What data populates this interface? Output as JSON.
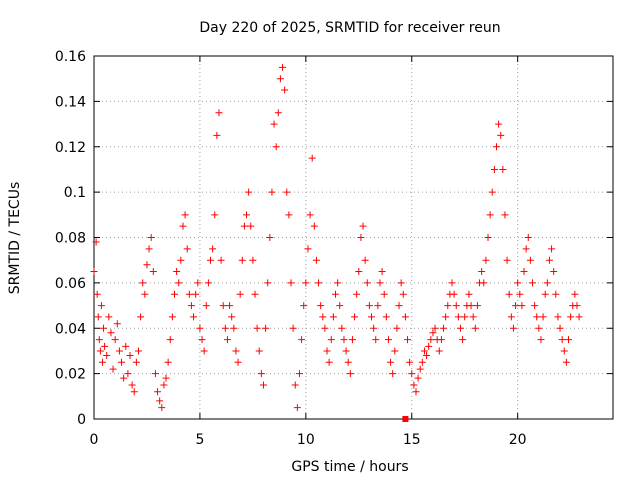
{
  "chart_data": {
    "type": "scatter",
    "title": "Day 220 of 2025, SRMTID for receiver reun",
    "xlabel": "GPS time / hours",
    "ylabel": "SRMTID / TECUs",
    "xlim": [
      0,
      24.5
    ],
    "ylim": [
      0,
      0.16
    ],
    "xticks": [
      0,
      5,
      10,
      15,
      20
    ],
    "xtick_labels": [
      "0",
      "5",
      "10",
      "15",
      "20"
    ],
    "yticks": [
      0,
      0.02,
      0.04,
      0.06,
      0.08,
      0.1,
      0.12,
      0.14,
      0.16
    ],
    "ytick_labels": [
      "0",
      "0.02",
      "0.04",
      "0.06",
      "0.08",
      "0.1",
      "0.12",
      "0.14",
      "0.16"
    ],
    "grid": true,
    "marker": "plus",
    "color": "#ff0000",
    "series": [
      {
        "name": "SRMTID",
        "points": [
          [
            0.0,
            0.065
          ],
          [
            0.1,
            0.078
          ],
          [
            0.15,
            0.055
          ],
          [
            0.2,
            0.045
          ],
          [
            0.25,
            0.035
          ],
          [
            0.3,
            0.03
          ],
          [
            0.35,
            0.05
          ],
          [
            0.4,
            0.025
          ],
          [
            0.45,
            0.04
          ],
          [
            0.5,
            0.032
          ],
          [
            0.6,
            0.028
          ],
          [
            0.7,
            0.045
          ],
          [
            0.8,
            0.038
          ],
          [
            0.9,
            0.022
          ],
          [
            1.0,
            0.035
          ],
          [
            1.1,
            0.042
          ],
          [
            1.2,
            0.03
          ],
          [
            1.3,
            0.025
          ],
          [
            1.4,
            0.018
          ],
          [
            1.5,
            0.032
          ],
          [
            1.6,
            0.02
          ],
          [
            1.7,
            0.028
          ],
          [
            1.8,
            0.015
          ],
          [
            1.9,
            0.012
          ],
          [
            2.0,
            0.025
          ],
          [
            2.1,
            0.03
          ],
          [
            2.2,
            0.045
          ],
          [
            2.3,
            0.06
          ],
          [
            2.4,
            0.055
          ],
          [
            2.5,
            0.068
          ],
          [
            2.6,
            0.075
          ],
          [
            2.7,
            0.08
          ],
          [
            2.8,
            0.065
          ],
          [
            2.9,
            0.02
          ],
          [
            3.0,
            0.012
          ],
          [
            3.1,
            0.008
          ],
          [
            3.2,
            0.005
          ],
          [
            3.3,
            0.015
          ],
          [
            3.4,
            0.018
          ],
          [
            3.5,
            0.025
          ],
          [
            3.6,
            0.035
          ],
          [
            3.7,
            0.045
          ],
          [
            3.8,
            0.055
          ],
          [
            3.9,
            0.065
          ],
          [
            4.0,
            0.06
          ],
          [
            4.1,
            0.07
          ],
          [
            4.2,
            0.085
          ],
          [
            4.3,
            0.09
          ],
          [
            4.4,
            0.075
          ],
          [
            4.5,
            0.055
          ],
          [
            4.6,
            0.05
          ],
          [
            4.7,
            0.045
          ],
          [
            4.8,
            0.055
          ],
          [
            4.9,
            0.06
          ],
          [
            5.0,
            0.04
          ],
          [
            5.1,
            0.035
          ],
          [
            5.2,
            0.03
          ],
          [
            5.3,
            0.05
          ],
          [
            5.4,
            0.06
          ],
          [
            5.5,
            0.07
          ],
          [
            5.6,
            0.075
          ],
          [
            5.7,
            0.09
          ],
          [
            5.8,
            0.125
          ],
          [
            5.9,
            0.135
          ],
          [
            6.0,
            0.07
          ],
          [
            6.1,
            0.05
          ],
          [
            6.2,
            0.04
          ],
          [
            6.3,
            0.035
          ],
          [
            6.4,
            0.05
          ],
          [
            6.5,
            0.045
          ],
          [
            6.6,
            0.04
          ],
          [
            6.7,
            0.03
          ],
          [
            6.8,
            0.025
          ],
          [
            6.9,
            0.055
          ],
          [
            7.0,
            0.07
          ],
          [
            7.1,
            0.085
          ],
          [
            7.2,
            0.09
          ],
          [
            7.3,
            0.1
          ],
          [
            7.4,
            0.085
          ],
          [
            7.5,
            0.07
          ],
          [
            7.6,
            0.055
          ],
          [
            7.7,
            0.04
          ],
          [
            7.8,
            0.03
          ],
          [
            7.9,
            0.02
          ],
          [
            8.0,
            0.015
          ],
          [
            8.1,
            0.04
          ],
          [
            8.2,
            0.06
          ],
          [
            8.3,
            0.08
          ],
          [
            8.4,
            0.1
          ],
          [
            8.5,
            0.13
          ],
          [
            8.6,
            0.12
          ],
          [
            8.7,
            0.135
          ],
          [
            8.8,
            0.15
          ],
          [
            8.9,
            0.155
          ],
          [
            9.0,
            0.145
          ],
          [
            9.1,
            0.1
          ],
          [
            9.2,
            0.09
          ],
          [
            9.3,
            0.06
          ],
          [
            9.4,
            0.04
          ],
          [
            9.5,
            0.015
          ],
          [
            9.6,
            0.005
          ],
          [
            9.7,
            0.02
          ],
          [
            9.8,
            0.035
          ],
          [
            9.9,
            0.05
          ],
          [
            10.0,
            0.06
          ],
          [
            10.1,
            0.075
          ],
          [
            10.2,
            0.09
          ],
          [
            10.3,
            0.115
          ],
          [
            10.4,
            0.085
          ],
          [
            10.5,
            0.07
          ],
          [
            10.6,
            0.06
          ],
          [
            10.7,
            0.05
          ],
          [
            10.8,
            0.045
          ],
          [
            10.9,
            0.04
          ],
          [
            11.0,
            0.03
          ],
          [
            11.1,
            0.025
          ],
          [
            11.2,
            0.035
          ],
          [
            11.3,
            0.045
          ],
          [
            11.4,
            0.055
          ],
          [
            11.5,
            0.06
          ],
          [
            11.6,
            0.05
          ],
          [
            11.7,
            0.04
          ],
          [
            11.8,
            0.035
          ],
          [
            11.9,
            0.03
          ],
          [
            12.0,
            0.025
          ],
          [
            12.1,
            0.02
          ],
          [
            12.2,
            0.035
          ],
          [
            12.3,
            0.045
          ],
          [
            12.4,
            0.055
          ],
          [
            12.5,
            0.065
          ],
          [
            12.6,
            0.08
          ],
          [
            12.7,
            0.085
          ],
          [
            12.8,
            0.07
          ],
          [
            12.9,
            0.06
          ],
          [
            13.0,
            0.05
          ],
          [
            13.1,
            0.045
          ],
          [
            13.2,
            0.04
          ],
          [
            13.3,
            0.035
          ],
          [
            13.4,
            0.05
          ],
          [
            13.5,
            0.06
          ],
          [
            13.6,
            0.065
          ],
          [
            13.7,
            0.055
          ],
          [
            13.8,
            0.045
          ],
          [
            13.9,
            0.035
          ],
          [
            14.0,
            0.025
          ],
          [
            14.1,
            0.02
          ],
          [
            14.2,
            0.03
          ],
          [
            14.3,
            0.04
          ],
          [
            14.4,
            0.05
          ],
          [
            14.5,
            0.06
          ],
          [
            14.6,
            0.055
          ],
          [
            14.7,
            0.045
          ],
          [
            14.8,
            0.035
          ],
          [
            14.9,
            0.025
          ],
          [
            15.0,
            0.02
          ],
          [
            15.1,
            0.015
          ],
          [
            15.2,
            0.012
          ],
          [
            15.3,
            0.018
          ],
          [
            15.4,
            0.022
          ],
          [
            15.5,
            0.025
          ],
          [
            15.6,
            0.03
          ],
          [
            15.7,
            0.028
          ],
          [
            15.8,
            0.032
          ],
          [
            15.9,
            0.035
          ],
          [
            16.0,
            0.038
          ],
          [
            16.1,
            0.04
          ],
          [
            16.2,
            0.035
          ],
          [
            16.3,
            0.03
          ],
          [
            16.4,
            0.035
          ],
          [
            16.5,
            0.04
          ],
          [
            16.6,
            0.045
          ],
          [
            16.7,
            0.05
          ],
          [
            16.8,
            0.055
          ],
          [
            16.9,
            0.06
          ],
          [
            17.0,
            0.055
          ],
          [
            17.1,
            0.05
          ],
          [
            17.2,
            0.045
          ],
          [
            17.3,
            0.04
          ],
          [
            17.4,
            0.035
          ],
          [
            17.5,
            0.045
          ],
          [
            17.6,
            0.05
          ],
          [
            17.7,
            0.055
          ],
          [
            17.8,
            0.05
          ],
          [
            17.9,
            0.045
          ],
          [
            18.0,
            0.04
          ],
          [
            18.1,
            0.05
          ],
          [
            18.2,
            0.06
          ],
          [
            18.3,
            0.065
          ],
          [
            18.4,
            0.06
          ],
          [
            18.5,
            0.07
          ],
          [
            18.6,
            0.08
          ],
          [
            18.7,
            0.09
          ],
          [
            18.8,
            0.1
          ],
          [
            18.9,
            0.11
          ],
          [
            19.0,
            0.12
          ],
          [
            19.1,
            0.13
          ],
          [
            19.2,
            0.125
          ],
          [
            19.3,
            0.11
          ],
          [
            19.4,
            0.09
          ],
          [
            19.5,
            0.07
          ],
          [
            19.6,
            0.055
          ],
          [
            19.7,
            0.045
          ],
          [
            19.8,
            0.04
          ],
          [
            19.9,
            0.05
          ],
          [
            20.0,
            0.06
          ],
          [
            20.1,
            0.055
          ],
          [
            20.2,
            0.05
          ],
          [
            20.3,
            0.065
          ],
          [
            20.4,
            0.075
          ],
          [
            20.5,
            0.08
          ],
          [
            20.6,
            0.07
          ],
          [
            20.7,
            0.06
          ],
          [
            20.8,
            0.05
          ],
          [
            20.9,
            0.045
          ],
          [
            21.0,
            0.04
          ],
          [
            21.1,
            0.035
          ],
          [
            21.2,
            0.045
          ],
          [
            21.3,
            0.055
          ],
          [
            21.4,
            0.06
          ],
          [
            21.5,
            0.07
          ],
          [
            21.6,
            0.075
          ],
          [
            21.7,
            0.065
          ],
          [
            21.8,
            0.055
          ],
          [
            21.9,
            0.045
          ],
          [
            22.0,
            0.04
          ],
          [
            22.1,
            0.035
          ],
          [
            22.2,
            0.03
          ],
          [
            22.3,
            0.025
          ],
          [
            22.4,
            0.035
          ],
          [
            22.5,
            0.045
          ],
          [
            22.6,
            0.05
          ],
          [
            22.7,
            0.055
          ],
          [
            22.8,
            0.05
          ],
          [
            22.9,
            0.045
          ]
        ]
      }
    ],
    "marker_at": [
      14.7,
      0.0
    ]
  }
}
